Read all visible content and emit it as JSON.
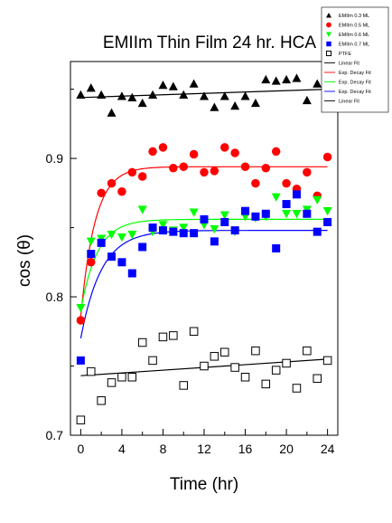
{
  "chart_data": {
    "type": "scatter",
    "title": "EMIIm Thin Film 24 hr. HCA",
    "xlabel": "Time (hr)",
    "ylabel": "cos (θ)",
    "xlim": [
      -1,
      25
    ],
    "ylim": [
      0.7,
      0.97
    ],
    "xticks": [
      0,
      4,
      8,
      12,
      16,
      20,
      24
    ],
    "yticks": [
      0.7,
      0.8,
      0.9
    ],
    "ytick_labels": [
      "0.7",
      "0.8",
      "0.9"
    ],
    "grid": false,
    "legend_position": "top-right",
    "legend": [
      {
        "label": "EMIIm 0.3 ML",
        "kind": "marker",
        "marker": "triangle-up",
        "color": "#000000"
      },
      {
        "label": "EMIIm 0.5 ML",
        "kind": "marker",
        "marker": "circle",
        "color": "#ff0000"
      },
      {
        "label": "EMIIm 0.6 ML",
        "kind": "marker",
        "marker": "triangle-down",
        "color": "#00ff00"
      },
      {
        "label": "EMIIm 0.7 ML",
        "kind": "marker",
        "marker": "square",
        "color": "#0000ff"
      },
      {
        "label": "PTFE",
        "kind": "marker",
        "marker": "open-square",
        "color": "#000000"
      },
      {
        "label": "Linear Fit",
        "kind": "line",
        "color": "#000000"
      },
      {
        "label": "Exp. Decay Fit",
        "kind": "line",
        "color": "#ff0000"
      },
      {
        "label": "Exp. Decay Fit",
        "kind": "line",
        "color": "#00ff00"
      },
      {
        "label": "Exp. Decay Fit",
        "kind": "line",
        "color": "#0000ff"
      },
      {
        "label": "Linear Fit",
        "kind": "line",
        "color": "#000000"
      }
    ],
    "series": [
      {
        "name": "EMIIm 0.3 ML",
        "marker": "triangle-up",
        "color": "#000000",
        "x": [
          0,
          1,
          2,
          3,
          4,
          5,
          6,
          7,
          8,
          9,
          10,
          11,
          12,
          13,
          14,
          15,
          16,
          17,
          18,
          19,
          20,
          21,
          22,
          23,
          24
        ],
        "y": [
          0.946,
          0.951,
          0.946,
          0.933,
          0.945,
          0.944,
          0.94,
          0.946,
          0.953,
          0.952,
          0.946,
          0.954,
          0.945,
          0.937,
          0.945,
          0.938,
          0.945,
          0.94,
          0.957,
          0.956,
          0.957,
          0.958,
          0.942,
          0.954,
          0.939
        ]
      },
      {
        "name": "EMIIm 0.5 ML",
        "marker": "circle",
        "color": "#ff0000",
        "x": [
          0,
          1,
          2,
          3,
          4,
          5,
          6,
          7,
          8,
          9,
          10,
          11,
          12,
          13,
          14,
          15,
          16,
          17,
          18,
          19,
          20,
          21,
          22,
          23,
          24
        ],
        "y": [
          0.783,
          0.825,
          0.875,
          0.882,
          0.876,
          0.89,
          0.887,
          0.905,
          0.908,
          0.893,
          0.894,
          0.903,
          0.89,
          0.891,
          0.908,
          0.904,
          0.894,
          0.882,
          0.893,
          0.905,
          0.882,
          0.878,
          0.89,
          0.873,
          0.901
        ]
      },
      {
        "name": "EMIIm 0.6 ML",
        "marker": "triangle-down",
        "color": "#00ff00",
        "x": [
          0,
          1,
          2,
          3,
          4,
          5,
          6,
          7,
          8,
          9,
          10,
          11,
          12,
          13,
          14,
          15,
          16,
          17,
          18,
          19,
          20,
          21,
          22,
          23,
          24
        ],
        "y": [
          0.792,
          0.84,
          0.842,
          0.845,
          0.843,
          0.845,
          0.863,
          0.847,
          0.852,
          0.848,
          0.85,
          0.861,
          0.852,
          0.849,
          0.859,
          0.847,
          0.858,
          0.857,
          0.858,
          0.872,
          0.86,
          0.86,
          0.863,
          0.87,
          0.862
        ]
      },
      {
        "name": "EMIIm 0.7 ML",
        "marker": "square",
        "color": "#0000ff",
        "x": [
          0,
          1,
          2,
          3,
          4,
          5,
          6,
          7,
          8,
          9,
          10,
          11,
          12,
          13,
          14,
          15,
          16,
          17,
          18,
          19,
          20,
          21,
          22,
          23,
          24
        ],
        "y": [
          0.754,
          0.831,
          0.839,
          0.829,
          0.825,
          0.817,
          0.836,
          0.85,
          0.848,
          0.847,
          0.846,
          0.846,
          0.856,
          0.84,
          0.854,
          0.848,
          0.862,
          0.858,
          0.86,
          0.835,
          0.867,
          0.874,
          0.86,
          0.847,
          0.854
        ]
      },
      {
        "name": "PTFE",
        "marker": "open-square",
        "color": "#000000",
        "x": [
          0,
          1,
          2,
          3,
          4,
          5,
          6,
          7,
          8,
          9,
          10,
          11,
          12,
          13,
          14,
          15,
          16,
          17,
          18,
          19,
          20,
          21,
          22,
          23,
          24
        ],
        "y": [
          0.711,
          0.746,
          0.725,
          0.738,
          0.742,
          0.742,
          0.767,
          0.754,
          0.771,
          0.772,
          0.736,
          0.775,
          0.75,
          0.757,
          0.76,
          0.749,
          0.742,
          0.761,
          0.737,
          0.747,
          0.752,
          0.734,
          0.761,
          0.741,
          0.754
        ]
      }
    ],
    "fits": [
      {
        "name": "Linear Fit",
        "kind": "linear",
        "color": "#000000",
        "x": [
          0,
          24
        ],
        "y": [
          0.944,
          0.95
        ]
      },
      {
        "name": "Exp. Decay Fit",
        "kind": "exp",
        "color": "#ff0000",
        "y0": 0.786,
        "plateau": 0.894,
        "rate": 1.4,
        "x": [
          0,
          24
        ]
      },
      {
        "name": "Exp. Decay Fit",
        "kind": "exp",
        "color": "#00ff00",
        "y0": 0.79,
        "plateau": 0.856,
        "rate": 1.6,
        "x": [
          0,
          24
        ]
      },
      {
        "name": "Exp. Decay Fit",
        "kind": "exp",
        "color": "#0000ff",
        "y0": 0.77,
        "plateau": 0.848,
        "rate": 2.0,
        "x": [
          0,
          24
        ]
      },
      {
        "name": "Linear Fit",
        "kind": "linear",
        "color": "#000000",
        "x": [
          0,
          24
        ],
        "y": [
          0.743,
          0.755
        ]
      }
    ]
  }
}
